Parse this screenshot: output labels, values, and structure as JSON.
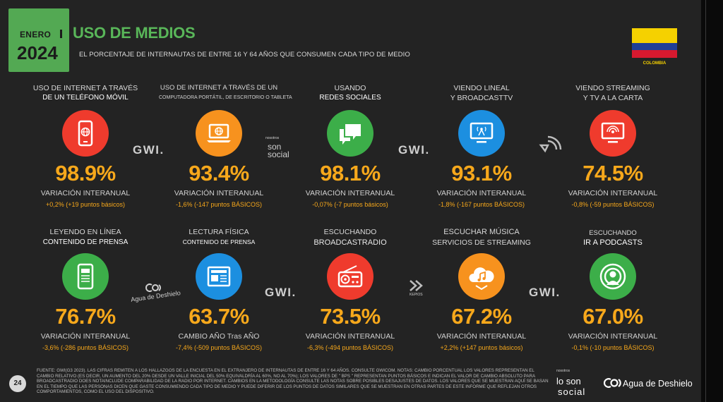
{
  "header": {
    "month": "ENERO",
    "year": "2024",
    "title": "USO DE MEDIOS",
    "subtitle": "EL PORCENTAJE DE INTERNAUTAS DE ENTRE 16 Y 64 AÑOS QUE CONSUMEN CADA TIPO DE MEDIO",
    "country": "COLOMBIA"
  },
  "colors": {
    "accent_green": "#59b659",
    "value_orange": "#f7a81b",
    "red": "#ef3b2d",
    "orange": "#f7921e",
    "green": "#3cae49",
    "blue": "#1c8fe0"
  },
  "cards": [
    {
      "label1": "USO DE INTERNET A TRAVÉS",
      "label2": "DE UN TELÉFONO MÓVIL",
      "icon": "smartphone-icon",
      "value": "98.9%",
      "variation_label": "VARIACIÓN INTERANUAL",
      "change": "+0,2% (+19 puntos básicos)"
    },
    {
      "label1": "USO DE INTERNET A TRAVÉS DE UN",
      "label2": "COMPUTADORA PORTÁTIL, DE ESCRITORIO O TABLETA",
      "icon": "laptop-icon",
      "value": "93.4%",
      "variation_label": "VARIACIÓN INTERANUAL",
      "change": "-1,6% (-147 puntos BÁSICOS)"
    },
    {
      "label1": "USANDO",
      "label2": "REDES SOCIALES",
      "icon": "chat-bubbles-icon",
      "value": "98.1%",
      "variation_label": "VARIACIÓN INTERANUAL",
      "change": "-0,07% (-7 puntos básicos)"
    },
    {
      "label1": "VIENDO LINEAL",
      "label2": "Y BROADCASTTV",
      "icon": "tv-broadcast-icon",
      "value": "93.1%",
      "variation_label": "VARIACIÓN INTERANUAL",
      "change": "-1,8% (-167 puntos BÁSICOS)"
    },
    {
      "label1": "VIENDO STREAMING",
      "label2": "Y TV A LA CARTA",
      "icon": "streaming-tv-icon",
      "value": "74.5%",
      "variation_label": "VARIACIÓN INTERANUAL",
      "change": "-0,8% (-59 puntos BÁSICOS)"
    },
    {
      "label1": "LEYENDO EN LÍNEA",
      "label2": "CONTENIDO DE PRENSA",
      "icon": "tablet-reading-icon",
      "value": "76.7%",
      "variation_label": "VARIACIÓN INTERANUAL",
      "change": "-3,6% (-286 puntos BÁSICOS)"
    },
    {
      "label1": "LECTURA FÍSICA",
      "label2": "CONTENIDO DE PRENSA",
      "icon": "newspaper-icon",
      "value": "63.7%",
      "variation_label": "CAMBIO AÑO Tras AÑO",
      "change": "-7,4% (-509 puntos BÁSICOS)"
    },
    {
      "label1": "ESCUCHANDO",
      "label2": "BROADCASTRADIO",
      "icon": "radio-icon",
      "value": "73.5%",
      "variation_label": "VARIACIÓN INTERANUAL",
      "change": "-6,3% (-494 puntos BÁSICOS)"
    },
    {
      "label1": "ESCUCHAR MÚSICA",
      "label2": "SERVICIOS DE STREAMING",
      "icon": "music-cloud-icon",
      "value": "67.2%",
      "variation_label": "VARIACIÓN INTERANUAL",
      "change": "+2,2% (+147 puntos básicos)"
    },
    {
      "label1": "ESCUCHANDO",
      "label2": "IR A PODCASTS",
      "icon": "podcast-icon",
      "value": "67.0%",
      "variation_label": "VARIACIÓN INTERANUAL",
      "change": "-0,1% (-10 puntos BÁSICOS)"
    }
  ],
  "logos": {
    "gwi": "GWI.",
    "nosotros_small": "nosotros",
    "son_social": "son social",
    "los_son": "lo son",
    "social": "social",
    "agua": "Agua de Deshielo",
    "kepios": "KEPIOS"
  },
  "footer": {
    "page": "24",
    "text": "FUENTE: GWI(G3 2023). LAS CIFRAS REMITEN A LOS HALLAZGOS DE LA ENCUESTA EN EL EXTRANJERO DE INTERNAUTAS DE ENTRE 16 Y 64 AÑOS. CONSULTE GWICOM. NOTAS: CAMBIO PORCENTUAL LOS VALORES REPRESENTAN EL CAMBIO RELATIVO (ES DECIR, UN AUMENTO DEL 20% DESDE UN VALLE INICIAL DEL 50% EQUIVALDRÍA AL 60%, NO AL 70%); LOS VALORES DE \" BPS \" REPRESENTAN PUNTOS BÁSICOS E INDICAN EL VALOR DE CAMBIO ABSOLUTO PARA BROADCASTRADIO DOES NOTAINCLUDE COMPARABILIDAD DE LA RADIO POR INTERNET. CAMBIOS EN LA METODOLOGÍA CONSULTE LAS NOTAS SOBRE POSIBLES DESAJUSTES DE DATOS. LOS VALORES QUE SE MUESTRAN AQUÍ SE BASAN EN EL TIEMPO QUE LAS PERSONAS DICEN QUE GASTE CONSUMIENDO CADA TIPO DE MEDIO Y PUEDE DIFERIR DE LOS PUNTOS DE DATOS SIMILARES QUE SE MUESTRAN EN OTRAS PARTES DE ESTE INFORME QUE REFLEJAN OTROS COMPORTAMIENTOS, COMO EL USO DEL DISPOSITIVO."
  }
}
